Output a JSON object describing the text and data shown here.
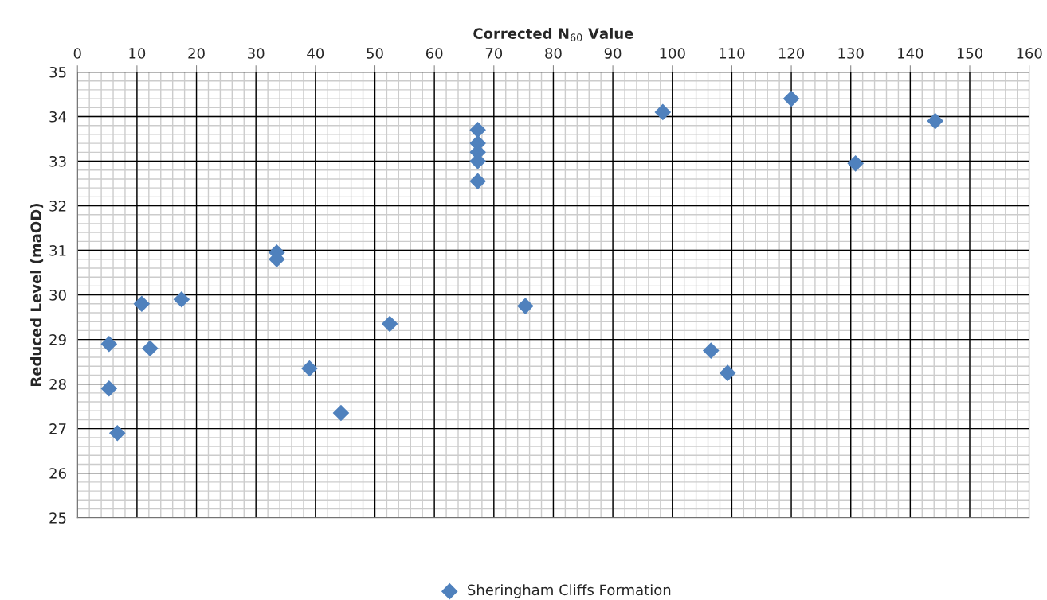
{
  "chart_data": {
    "type": "scatter",
    "xlabel": "Corrected N$_{60}$ Value",
    "ylabel": "Reduced Level (maOD)",
    "xlim": [
      0,
      160
    ],
    "xticks": [
      0,
      10,
      20,
      30,
      40,
      50,
      60,
      70,
      80,
      90,
      100,
      110,
      120,
      130,
      140,
      150,
      160
    ],
    "ylim": [
      25,
      35
    ],
    "yticks": [
      25,
      26,
      27,
      28,
      29,
      30,
      31,
      32,
      33,
      34,
      35
    ],
    "grid": true,
    "legend": "bottom",
    "marker": "diamond",
    "series": [
      {
        "name": "Sheringham Cliffs Formation",
        "color": "#4f81bd",
        "x": [
          5.3,
          5.3,
          6.7,
          10.8,
          12.2,
          17.5,
          33.5,
          33.5,
          39,
          44.3,
          52.5,
          67.3,
          67.3,
          67.3,
          67.3,
          67.3,
          75.3,
          98.4,
          106.5,
          109.3,
          120,
          130.8,
          144.2
        ],
        "values": [
          28.9,
          27.9,
          26.9,
          29.8,
          28.8,
          29.9,
          30.95,
          30.8,
          28.35,
          27.35,
          29.35,
          33.7,
          33.4,
          33.2,
          33.0,
          32.55,
          29.75,
          34.1,
          28.75,
          28.25,
          34.4,
          32.95,
          33.9
        ]
      }
    ]
  }
}
